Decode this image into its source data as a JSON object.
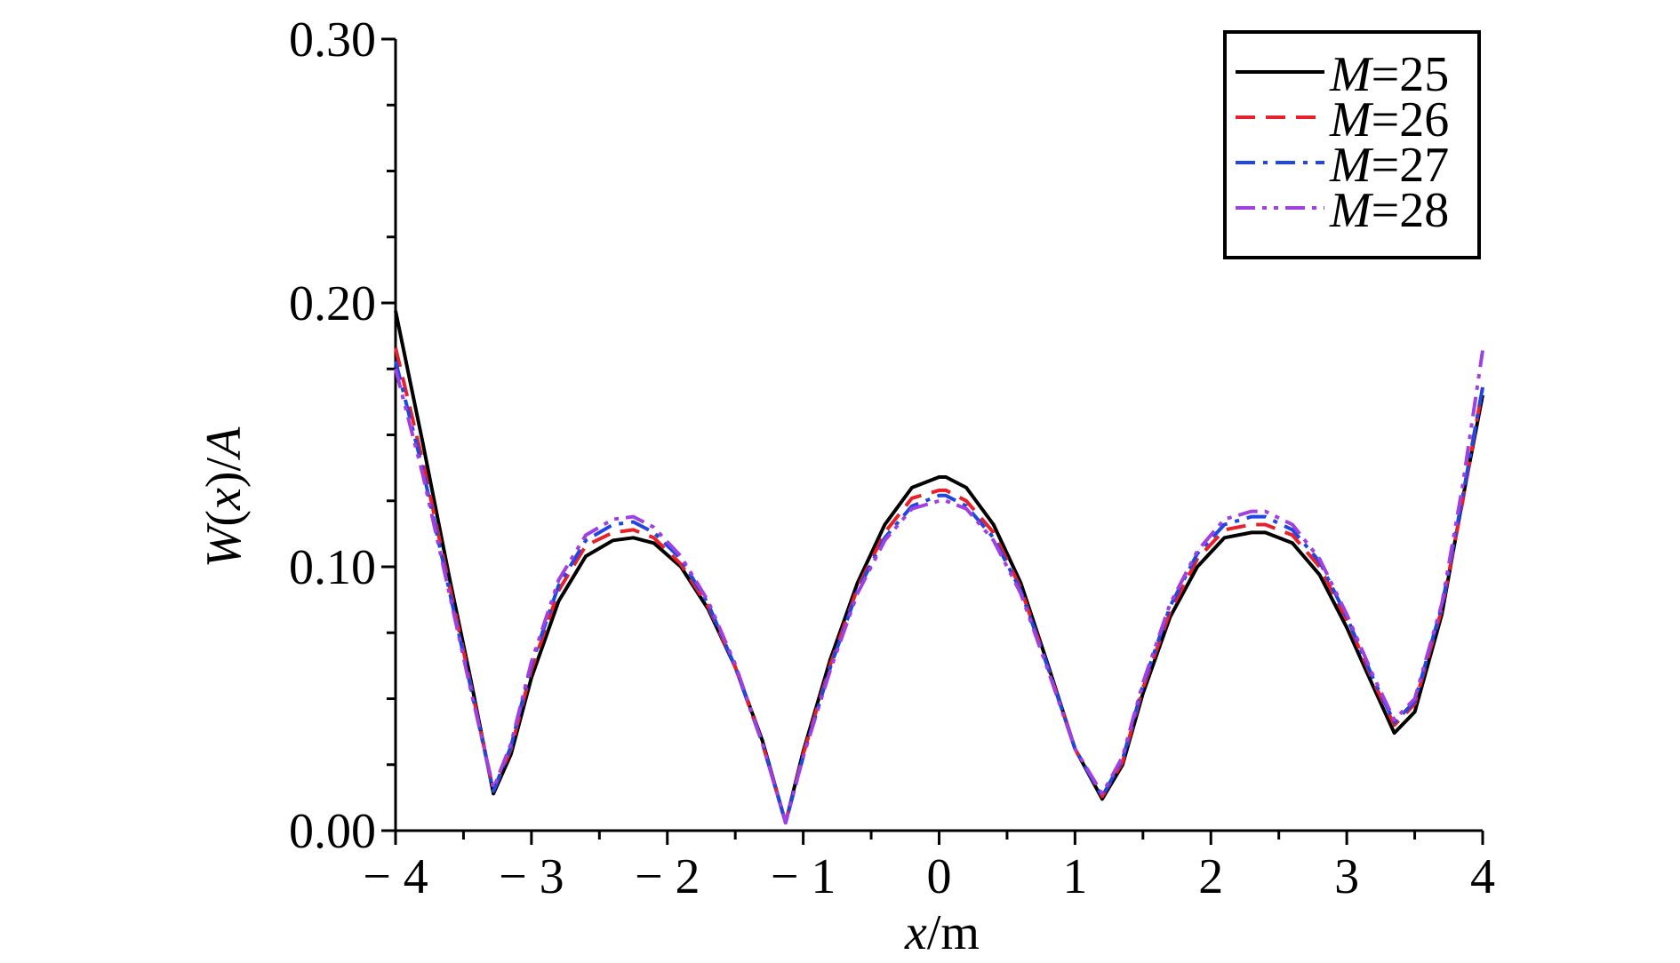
{
  "chart_data": {
    "type": "line",
    "xlabel": "x/m",
    "xlabel_var": "x",
    "xlabel_unit": "/m",
    "ylabel": "W(x)/A",
    "ylabel_parts": [
      "W",
      "(",
      "x",
      ")/",
      "A"
    ],
    "xlim": [
      -4,
      4
    ],
    "ylim": [
      0,
      0.3
    ],
    "xticks": [
      -4,
      -3,
      -2,
      -1,
      0,
      1,
      2,
      3,
      4
    ],
    "xtick_labels": [
      "− 4",
      "− 3",
      "− 2",
      "− 1",
      "0",
      "1",
      "2",
      "3",
      "4"
    ],
    "yticks": [
      0,
      0.1,
      0.2,
      0.3
    ],
    "ytick_labels": [
      "0.00",
      "0.10",
      "0.20",
      "0.30"
    ],
    "grid": false,
    "legend_position": "top-right",
    "series": [
      {
        "name": "M=25",
        "name_var": "M",
        "name_rest": "=25",
        "color": "#000000",
        "style": "solid",
        "x": [
          -4,
          -3.8,
          -3.6,
          -3.45,
          -3.28,
          -3.15,
          -3.0,
          -2.8,
          -2.6,
          -2.4,
          -2.25,
          -2.1,
          -1.9,
          -1.7,
          -1.5,
          -1.3,
          -1.13,
          -1.0,
          -0.8,
          -0.6,
          -0.4,
          -0.2,
          0,
          0.05,
          0.2,
          0.4,
          0.6,
          0.8,
          1.0,
          1.2,
          1.35,
          1.5,
          1.7,
          1.9,
          2.1,
          2.3,
          2.4,
          2.6,
          2.8,
          3.0,
          3.2,
          3.35,
          3.5,
          3.7,
          3.85,
          4.0
        ],
        "y": [
          0.197,
          0.147,
          0.095,
          0.058,
          0.014,
          0.029,
          0.058,
          0.087,
          0.104,
          0.11,
          0.111,
          0.109,
          0.1,
          0.084,
          0.062,
          0.034,
          0.003,
          0.03,
          0.065,
          0.094,
          0.116,
          0.13,
          0.134,
          0.134,
          0.13,
          0.116,
          0.094,
          0.063,
          0.031,
          0.012,
          0.025,
          0.052,
          0.081,
          0.1,
          0.111,
          0.113,
          0.113,
          0.109,
          0.097,
          0.077,
          0.054,
          0.037,
          0.045,
          0.082,
          0.125,
          0.165
        ]
      },
      {
        "name": "M=26",
        "name_var": "M",
        "name_rest": "=26",
        "color": "#e8202a",
        "style": "dashed",
        "x": [
          -4,
          -3.8,
          -3.6,
          -3.45,
          -3.28,
          -3.15,
          -3.0,
          -2.8,
          -2.6,
          -2.4,
          -2.25,
          -2.1,
          -1.9,
          -1.7,
          -1.5,
          -1.3,
          -1.13,
          -1.0,
          -0.8,
          -0.6,
          -0.4,
          -0.2,
          0,
          0.05,
          0.2,
          0.4,
          0.6,
          0.8,
          1.0,
          1.2,
          1.35,
          1.5,
          1.7,
          1.9,
          2.1,
          2.3,
          2.4,
          2.6,
          2.8,
          3.0,
          3.2,
          3.35,
          3.5,
          3.7,
          3.85,
          4.0
        ],
        "y": [
          0.183,
          0.14,
          0.092,
          0.056,
          0.015,
          0.031,
          0.061,
          0.091,
          0.108,
          0.113,
          0.114,
          0.111,
          0.101,
          0.085,
          0.062,
          0.033,
          0.003,
          0.029,
          0.063,
          0.092,
          0.113,
          0.126,
          0.129,
          0.129,
          0.125,
          0.113,
          0.092,
          0.062,
          0.031,
          0.013,
          0.026,
          0.054,
          0.083,
          0.103,
          0.114,
          0.116,
          0.116,
          0.112,
          0.1,
          0.08,
          0.056,
          0.04,
          0.048,
          0.084,
          0.124,
          0.168
        ]
      },
      {
        "name": "M=27",
        "name_var": "M",
        "name_rest": "=27",
        "color": "#2048e0",
        "style": "dashdot",
        "x": [
          -4,
          -3.8,
          -3.6,
          -3.45,
          -3.28,
          -3.15,
          -3.0,
          -2.8,
          -2.6,
          -2.4,
          -2.25,
          -2.1,
          -1.9,
          -1.7,
          -1.5,
          -1.3,
          -1.13,
          -1.0,
          -0.8,
          -0.6,
          -0.4,
          -0.2,
          0,
          0.05,
          0.2,
          0.4,
          0.6,
          0.8,
          1.0,
          1.2,
          1.35,
          1.5,
          1.7,
          1.9,
          2.1,
          2.3,
          2.4,
          2.6,
          2.8,
          3.0,
          3.2,
          3.35,
          3.5,
          3.7,
          3.85,
          4.0
        ],
        "y": [
          0.178,
          0.137,
          0.09,
          0.055,
          0.015,
          0.032,
          0.063,
          0.093,
          0.11,
          0.116,
          0.117,
          0.113,
          0.103,
          0.086,
          0.062,
          0.033,
          0.003,
          0.028,
          0.062,
          0.091,
          0.111,
          0.123,
          0.127,
          0.127,
          0.123,
          0.111,
          0.091,
          0.062,
          0.031,
          0.013,
          0.027,
          0.055,
          0.085,
          0.105,
          0.116,
          0.119,
          0.119,
          0.114,
          0.102,
          0.081,
          0.057,
          0.041,
          0.049,
          0.085,
          0.126,
          0.168
        ]
      },
      {
        "name": "M=28",
        "name_var": "M",
        "name_rest": "=28",
        "color": "#a040e0",
        "style": "dashdotdot",
        "x": [
          -4,
          -3.8,
          -3.6,
          -3.45,
          -3.28,
          -3.15,
          -3.0,
          -2.8,
          -2.6,
          -2.4,
          -2.25,
          -2.1,
          -1.9,
          -1.7,
          -1.5,
          -1.3,
          -1.13,
          -1.0,
          -0.8,
          -0.6,
          -0.4,
          -0.2,
          0,
          0.05,
          0.2,
          0.4,
          0.6,
          0.8,
          1.0,
          1.2,
          1.35,
          1.5,
          1.7,
          1.9,
          2.1,
          2.3,
          2.4,
          2.6,
          2.8,
          3.0,
          3.2,
          3.35,
          3.5,
          3.7,
          3.85,
          4.0
        ],
        "y": [
          0.175,
          0.135,
          0.089,
          0.054,
          0.016,
          0.033,
          0.064,
          0.095,
          0.112,
          0.118,
          0.119,
          0.115,
          0.104,
          0.087,
          0.063,
          0.033,
          0.003,
          0.028,
          0.061,
          0.09,
          0.11,
          0.122,
          0.125,
          0.125,
          0.122,
          0.11,
          0.09,
          0.061,
          0.031,
          0.014,
          0.028,
          0.056,
          0.086,
          0.106,
          0.118,
          0.121,
          0.121,
          0.116,
          0.103,
          0.082,
          0.058,
          0.042,
          0.05,
          0.086,
          0.13,
          0.182
        ]
      }
    ]
  }
}
